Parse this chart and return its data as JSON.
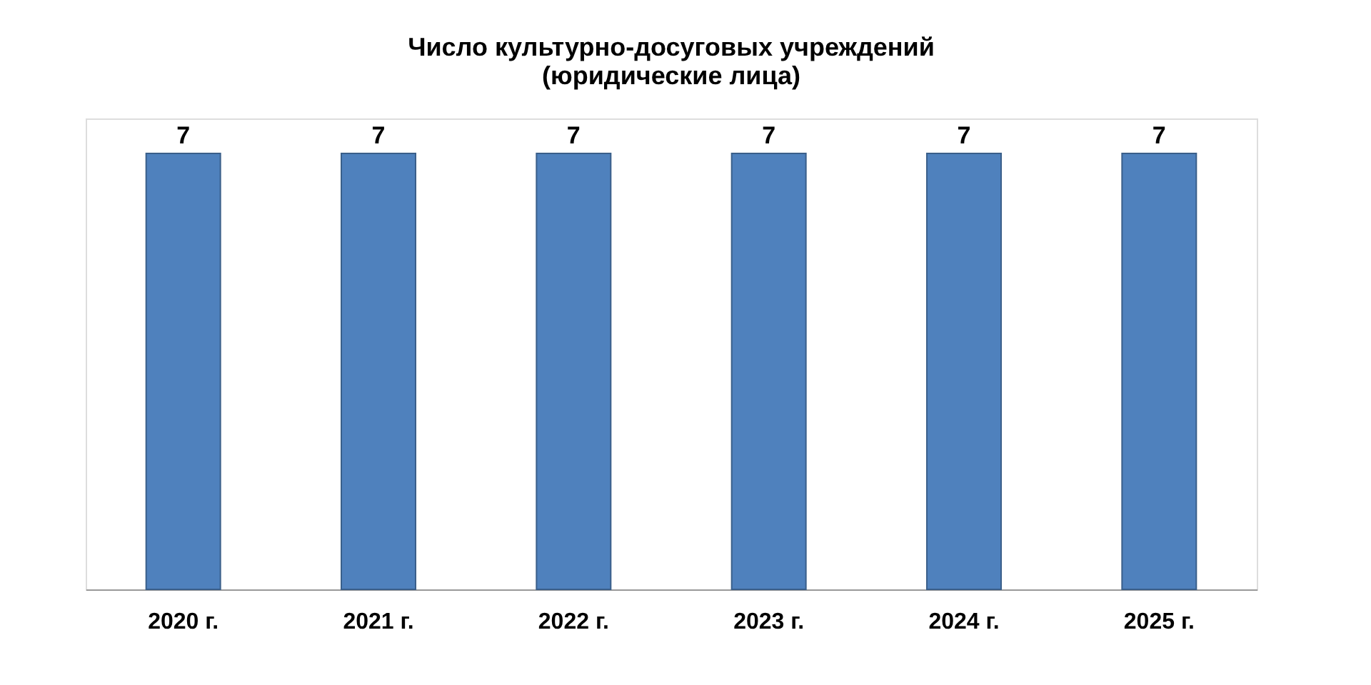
{
  "chart_data": {
    "type": "bar",
    "title": "Число культурно-досуговых учреждений\n(юридические лица)",
    "categories": [
      "2020 г.",
      "2021 г.",
      "2022 г.",
      "2023 г.",
      "2024 г.",
      "2025 г."
    ],
    "values": [
      7,
      7,
      7,
      7,
      7,
      7
    ],
    "color": "#4f81bd",
    "data_labels": true
  }
}
